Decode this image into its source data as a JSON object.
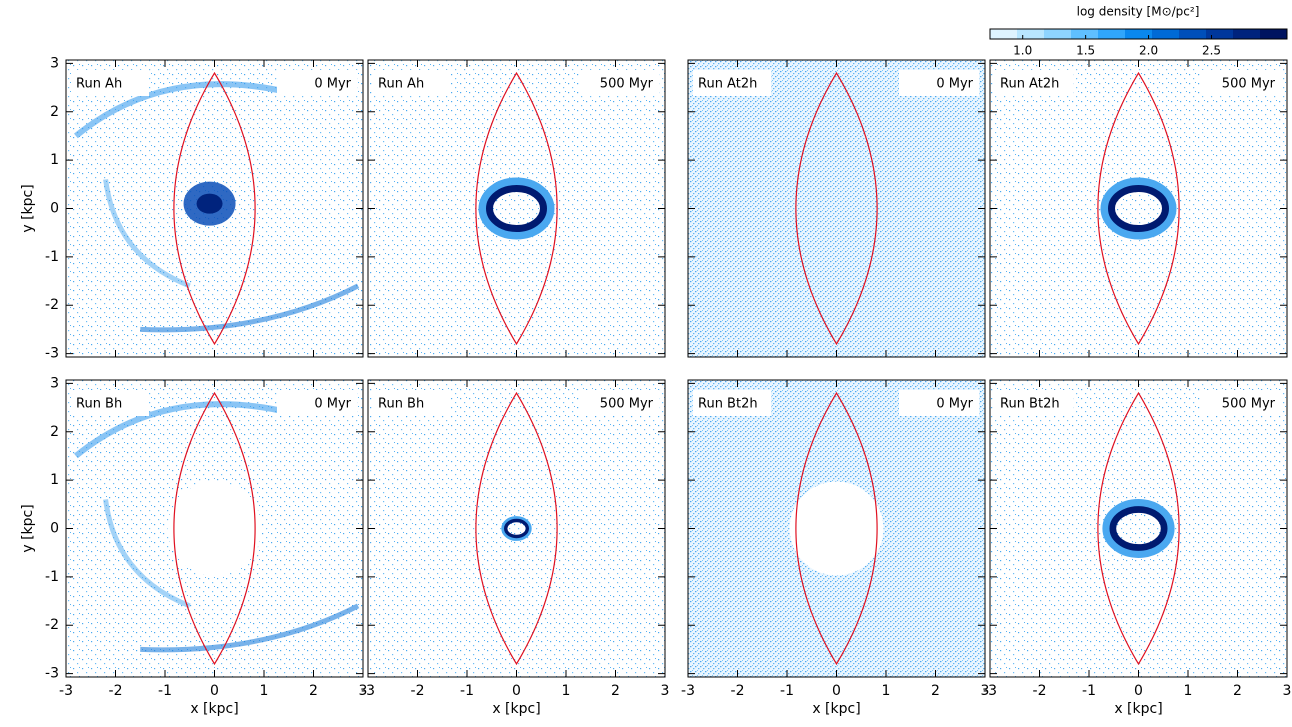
{
  "colorbar": {
    "title": "log density [M⊙/pc²]",
    "lim": [
      0.74,
      3.1
    ],
    "ticks": [
      {
        "value": 1,
        "label": "1.0"
      },
      1.5,
      {
        "value": 2,
        "label": "2.0"
      },
      2.5
    ],
    "colors": [
      "#dff4ff",
      "#b8e6ff",
      "#8ed4ff",
      "#5fbfff",
      "#30a6fb",
      "#0a88ee",
      "#006ad6",
      "#004fba",
      "#00379c",
      "#00237d",
      "#001460"
    ]
  },
  "chart_data": [
    {
      "type": "map",
      "title": "Run Ah",
      "annotation": "0 Myr",
      "xlim": [
        -3,
        3
      ],
      "ylim": [
        -3.07,
        3.07
      ],
      "xticks": [
        -3,
        -2,
        -1,
        0,
        1,
        2,
        3
      ],
      "yticks": [
        -3,
        -2,
        -1,
        0,
        1,
        2,
        3
      ],
      "ylabel": "y [kpc]"
    },
    {
      "type": "map",
      "title": "Run Ah",
      "annotation": "500 Myr",
      "xlim": [
        -3,
        3
      ],
      "ylim": [
        -3.07,
        3.07
      ],
      "xticks": [
        -3,
        -2,
        -1,
        0,
        1,
        2,
        3
      ],
      "yticks": [
        -3,
        -2,
        -1,
        0,
        1,
        2,
        3
      ]
    },
    {
      "type": "map",
      "title": "Run At2h",
      "annotation": "0 Myr",
      "xlim": [
        -3,
        3
      ],
      "ylim": [
        -3.07,
        3.07
      ],
      "xticks": [
        -3,
        -2,
        -1,
        0,
        1,
        2,
        3
      ],
      "yticks": [
        -3,
        -2,
        -1,
        0,
        1,
        2,
        3
      ]
    },
    {
      "type": "map",
      "title": "Run At2h",
      "annotation": "500 Myr",
      "xlim": [
        -3,
        3
      ],
      "ylim": [
        -3.07,
        3.07
      ],
      "xticks": [
        -3,
        -2,
        -1,
        0,
        1,
        2,
        3
      ],
      "yticks": [
        -3,
        -2,
        -1,
        0,
        1,
        2,
        3
      ]
    },
    {
      "type": "map",
      "title": "Run Bh",
      "annotation": "0 Myr",
      "xlim": [
        -3,
        3
      ],
      "ylim": [
        -3.07,
        3.07
      ],
      "xticks": [
        -3,
        -2,
        -1,
        0,
        1,
        2,
        3
      ],
      "yticks": [
        -3,
        -2,
        -1,
        0,
        1,
        2,
        3
      ],
      "xlabel": "x [kpc]",
      "ylabel": "y [kpc]"
    },
    {
      "type": "map",
      "title": "Run Bh",
      "annotation": "500 Myr",
      "xlim": [
        -3,
        3
      ],
      "ylim": [
        -3.07,
        3.07
      ],
      "xticks": [
        -3,
        -2,
        -1,
        0,
        1,
        2,
        3
      ],
      "yticks": [
        -3,
        -2,
        -1,
        0,
        1,
        2,
        3
      ],
      "xlabel": "x [kpc]"
    },
    {
      "type": "map",
      "title": "Run Bt2h",
      "annotation": "0 Myr",
      "xlim": [
        -3,
        3
      ],
      "ylim": [
        -3.07,
        3.07
      ],
      "xticks": [
        -3,
        -2,
        -1,
        0,
        1,
        2,
        3
      ],
      "yticks": [
        -3,
        -2,
        -1,
        0,
        1,
        2,
        3
      ],
      "xlabel": "x [kpc]"
    },
    {
      "type": "map",
      "title": "Run Bt2h",
      "annotation": "500 Myr",
      "xlim": [
        -3,
        3
      ],
      "ylim": [
        -3.07,
        3.07
      ],
      "xticks": [
        -3,
        -2,
        -1,
        0,
        1,
        2,
        3
      ],
      "yticks": [
        -3,
        -2,
        -1,
        0,
        1,
        2,
        3
      ],
      "xlabel": "x [kpc]"
    }
  ]
}
